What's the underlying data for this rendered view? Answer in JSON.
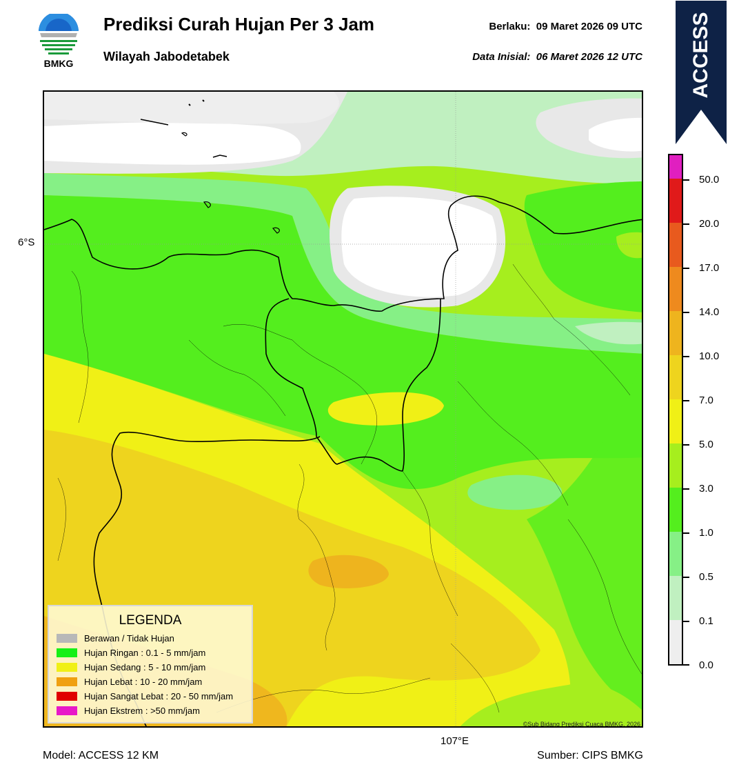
{
  "header": {
    "title": "Prediksi Curah Hujan Per 3 Jam",
    "subtitle": "Wilayah Jabodetabek",
    "valid_label": "Berlaku:",
    "valid_value": "09 Maret 2026 09 UTC",
    "init_label": "Data Inisial:",
    "init_value": "06 Maret 2026 12 UTC"
  },
  "logo": {
    "text": "BMKG",
    "icon": "bmkg-logo-icon"
  },
  "banner": {
    "text": "ACCESS",
    "color": "#0e2246"
  },
  "map": {
    "lat_label": "6°S",
    "lon_label": "107°E",
    "copyright": "©Sub Bidang Prediksi Cuaca BMKG, 2026"
  },
  "colorbar": {
    "labels": [
      "50.0",
      "20.0",
      "17.0",
      "14.0",
      "10.0",
      "7.0",
      "5.0",
      "3.0",
      "1.0",
      "0.5",
      "0.1",
      "0.0"
    ],
    "colors": [
      "#e01fc0",
      "#e01a1a",
      "#e85a1e",
      "#ee8a1e",
      "#eeb41e",
      "#eed41e",
      "#f0f016",
      "#a6ee1e",
      "#54ee1e",
      "#86f086",
      "#c0f0c0",
      "#eeeeee"
    ]
  },
  "legend": {
    "title": "LEGENDA",
    "items": [
      {
        "label": "Berawan / Tidak Hujan",
        "color": "#b8b8b8"
      },
      {
        "label": "Hujan Ringan : 0.1 - 5 mm/jam",
        "color": "#16f016"
      },
      {
        "label": "Hujan Sedang : 5 - 10 mm/jam",
        "color": "#f0f016"
      },
      {
        "label": "Hujan Lebat : 10 - 20 mm/jam",
        "color": "#f0a010"
      },
      {
        "label": "Hujan Sangat Lebat : 20 - 50 mm/jam",
        "color": "#e00000"
      },
      {
        "label": "Hujan Ekstrem : >50 mm/jam",
        "color": "#e818c8"
      }
    ]
  },
  "footer": {
    "model": "Model: ACCESS 12 KM",
    "source": "Sumber: CIPS BMKG"
  }
}
